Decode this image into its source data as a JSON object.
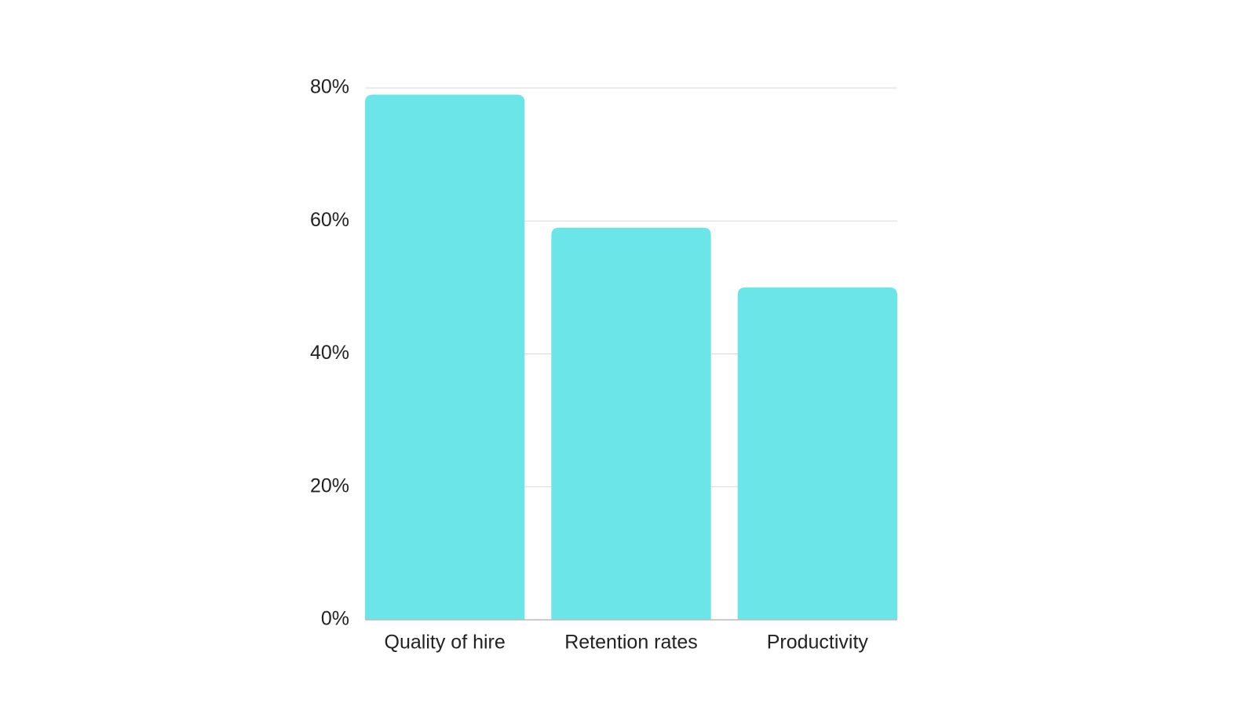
{
  "chart_data": {
    "type": "bar",
    "categories": [
      "Quality of hire",
      "Retention rates",
      "Productivity"
    ],
    "values": [
      79,
      59,
      50
    ],
    "color": "#6ce5e8",
    "ylim": [
      0,
      80
    ],
    "yticks": [
      {
        "value": 0,
        "label": "0%"
      },
      {
        "value": 20,
        "label": "20%"
      },
      {
        "value": 40,
        "label": "40%"
      },
      {
        "value": 60,
        "label": "60%"
      },
      {
        "value": 80,
        "label": "80%"
      }
    ],
    "grid": true
  }
}
